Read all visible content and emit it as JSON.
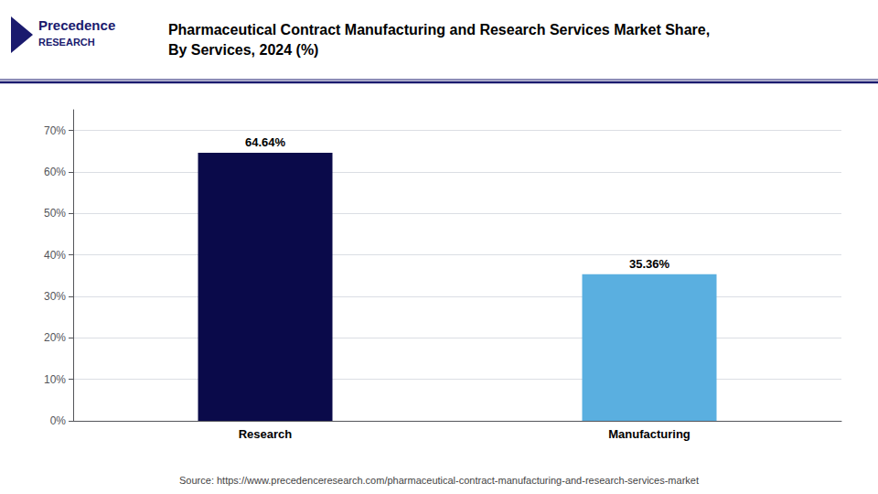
{
  "chart_data": {
    "type": "bar",
    "title": "Pharmaceutical Contract Manufacturing and Research Services Market Share,\nBy Services, 2024 (%)",
    "categories": [
      "Research",
      "Manufacturing"
    ],
    "values": [
      64.64,
      35.36
    ],
    "value_labels": [
      "64.64%",
      "35.36%"
    ],
    "colors": [
      "#0a0a4a",
      "#5aafe0"
    ],
    "ylim": [
      0,
      75
    ],
    "yticks": [
      {
        "value": 0,
        "label": "0%"
      },
      {
        "value": 10,
        "label": "10%"
      },
      {
        "value": 20,
        "label": "20%"
      },
      {
        "value": 30,
        "label": "30%"
      },
      {
        "value": 40,
        "label": "40%"
      },
      {
        "value": 50,
        "label": "50%"
      },
      {
        "value": 60,
        "label": "60%"
      },
      {
        "value": 70,
        "label": "70%"
      }
    ],
    "grid": true,
    "data_labels": true,
    "annotations": [
      "Precedence",
      "RESEARCH",
      "Source: https://www.precedenceresearch.com/pharmaceutical-contract-manufacturing-and-research-services-market"
    ]
  }
}
